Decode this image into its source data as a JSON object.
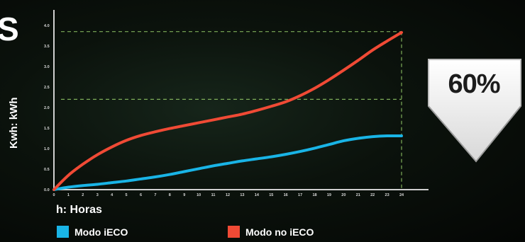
{
  "corner_letter": "S",
  "badge": {
    "text": "60%"
  },
  "legend": [
    {
      "label": "Modo iECO",
      "color": "#19b4e6"
    },
    {
      "label": "Modo no iECO",
      "color": "#f04a35"
    }
  ],
  "chart_data": {
    "type": "line",
    "xlabel": "h: Horas",
    "ylabel": "Kwh: kWh",
    "x": [
      0,
      1,
      2,
      3,
      4,
      5,
      6,
      7,
      8,
      9,
      10,
      11,
      12,
      13,
      14,
      15,
      16,
      17,
      18,
      19,
      20,
      21,
      22,
      23,
      24
    ],
    "xlim": [
      0,
      24
    ],
    "ylim": [
      0,
      4.0
    ],
    "yticks": [
      "0.0",
      "0.5",
      "1.0",
      "1.5",
      "2.0",
      "2.5",
      "3.0",
      "3.5",
      "4.0"
    ],
    "reference_lines": [
      2.2,
      3.85
    ],
    "series": [
      {
        "name": "Modo iECO",
        "color": "#19b4e6",
        "values": [
          0.0,
          0.06,
          0.1,
          0.13,
          0.17,
          0.21,
          0.26,
          0.31,
          0.37,
          0.44,
          0.51,
          0.58,
          0.64,
          0.7,
          0.75,
          0.8,
          0.86,
          0.93,
          1.01,
          1.1,
          1.19,
          1.25,
          1.29,
          1.31,
          1.31
        ]
      },
      {
        "name": "Modo no iECO",
        "color": "#f04a35",
        "values": [
          0.0,
          0.35,
          0.62,
          0.85,
          1.04,
          1.2,
          1.32,
          1.41,
          1.49,
          1.56,
          1.63,
          1.7,
          1.77,
          1.84,
          1.93,
          2.03,
          2.14,
          2.29,
          2.47,
          2.68,
          2.91,
          3.15,
          3.4,
          3.62,
          3.83
        ]
      }
    ]
  }
}
